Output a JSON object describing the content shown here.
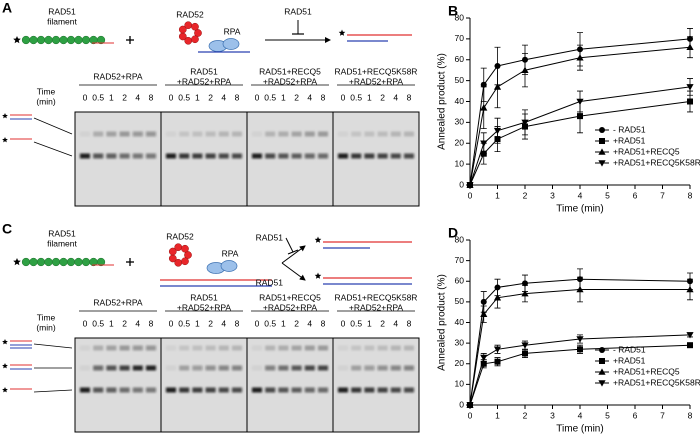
{
  "panel_a": {
    "label": "A",
    "filament": [
      "RAD51",
      "filament"
    ],
    "rad52": "RAD52",
    "rpa": "RPA",
    "inhibitor": "RAD51",
    "time_label": [
      "Time",
      "(min)"
    ],
    "times": [
      0,
      0.5,
      1,
      2,
      4,
      8
    ],
    "lanes": [
      [
        "RAD52+RPA"
      ],
      [
        "RAD51",
        "+RAD52+RPA"
      ],
      [
        "RAD51+RECQ5",
        "+RAD52+RPA"
      ],
      [
        "RAD51+RECQ5K58R",
        "+RAD52+RPA"
      ]
    ]
  },
  "panel_c": {
    "label": "C",
    "filament": [
      "RAD51",
      "filament"
    ],
    "rad52": "RAD52",
    "rpa": "RPA",
    "inhibitor": "RAD51",
    "promoter": "RAD51",
    "time_label": [
      "Time",
      "(min)"
    ],
    "times": [
      0,
      0.5,
      1,
      2,
      4,
      8
    ],
    "lanes": [
      [
        "RAD52+RPA"
      ],
      [
        "RAD51",
        "+RAD52+RPA"
      ],
      [
        "RAD51+RECQ5",
        "+RAD52+RPA"
      ],
      [
        "RAD51+RECQ5K58R",
        "+RAD52+RPA"
      ]
    ]
  },
  "chart_data": [
    {
      "type": "line",
      "panel": "B",
      "x_label": "Time (min)",
      "y_label": "Annealed product (%)",
      "x": [
        0,
        0.5,
        1,
        2,
        4,
        8
      ],
      "xlim": [
        0,
        8
      ],
      "xticks": [
        0,
        1,
        2,
        3,
        4,
        5,
        6,
        7,
        8
      ],
      "ylim": [
        0,
        80
      ],
      "yticks": [
        0,
        10,
        20,
        30,
        40,
        50,
        60,
        70,
        80
      ],
      "legend": "lower right",
      "series": [
        {
          "name": "- RAD51",
          "color": "#000000",
          "marker": "circle",
          "values": [
            0,
            48,
            57,
            60,
            65,
            70
          ],
          "errors": [
            0,
            8,
            9,
            7,
            8,
            5
          ]
        },
        {
          "name": "+RAD51",
          "color": "#000000",
          "marker": "square",
          "values": [
            0,
            15,
            22,
            28,
            33,
            40
          ],
          "errors": [
            0,
            5,
            6,
            6,
            8,
            5
          ]
        },
        {
          "name": "+RAD51+RECQ5",
          "color": "#000000",
          "marker": "triangle-up",
          "values": [
            0,
            37,
            47,
            55,
            61,
            66
          ],
          "errors": [
            0,
            10,
            10,
            8,
            6,
            5
          ]
        },
        {
          "name": "+RAD51+RECQ5K58R",
          "color": "#000000",
          "marker": "triangle-down",
          "values": [
            0,
            20,
            26,
            30,
            40,
            47
          ],
          "errors": [
            0,
            5,
            6,
            6,
            5,
            4
          ]
        }
      ]
    },
    {
      "type": "line",
      "panel": "D",
      "x_label": "Time (min)",
      "y_label": "Annealed product (%)",
      "x": [
        0,
        0.5,
        1,
        2,
        4,
        8
      ],
      "xlim": [
        0,
        8
      ],
      "xticks": [
        0,
        1,
        2,
        3,
        4,
        5,
        6,
        7,
        8
      ],
      "ylim": [
        0,
        80
      ],
      "yticks": [
        0,
        10,
        20,
        30,
        40,
        50,
        60,
        70,
        80
      ],
      "legend": "lower right",
      "series": [
        {
          "name": "- RAD51",
          "color": "#000000",
          "marker": "circle",
          "values": [
            0,
            50,
            57,
            59,
            61,
            60
          ],
          "errors": [
            0,
            5,
            4,
            4,
            5,
            4
          ]
        },
        {
          "name": "+RAD51",
          "color": "#000000",
          "marker": "square",
          "values": [
            0,
            20,
            21,
            25,
            27,
            29
          ],
          "errors": [
            0,
            2,
            2,
            2,
            2,
            1
          ]
        },
        {
          "name": "+RAD51+RECQ5",
          "color": "#000000",
          "marker": "triangle-up",
          "values": [
            0,
            44,
            52,
            54,
            56,
            56
          ],
          "errors": [
            0,
            4,
            5,
            4,
            6,
            5
          ]
        },
        {
          "name": "+RAD51+RECQ5K58R",
          "color": "#000000",
          "marker": "triangle-down",
          "values": [
            0,
            23,
            27,
            29,
            32,
            34
          ],
          "errors": [
            0,
            2,
            2,
            2,
            2,
            1
          ]
        }
      ]
    }
  ]
}
